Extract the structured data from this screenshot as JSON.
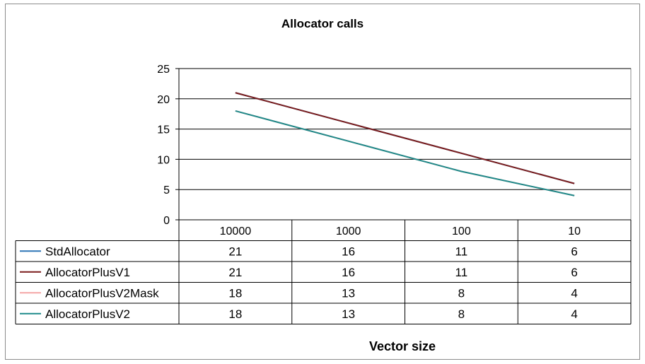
{
  "chart_data": {
    "type": "line",
    "title": "Allocator calls",
    "xlabel": "Vector size",
    "ylabel": "",
    "categories": [
      "10000",
      "1000",
      "100",
      "10"
    ],
    "ylim": [
      0,
      25
    ],
    "yticks": [
      0,
      5,
      10,
      15,
      20,
      25
    ],
    "grid": true,
    "legend": "data-table",
    "series": [
      {
        "name": "StdAllocator",
        "values": [
          21,
          16,
          11,
          6
        ],
        "color": "#2e75b6"
      },
      {
        "name": "AllocatorPlusV1",
        "values": [
          21,
          16,
          11,
          6
        ],
        "color": "#7b1c1c"
      },
      {
        "name": "AllocatorPlusV2Mask",
        "values": [
          18,
          13,
          8,
          4
        ],
        "color": "#f4a6a6"
      },
      {
        "name": "AllocatorPlusV2",
        "values": [
          18,
          13,
          8,
          4
        ],
        "color": "#1f8a8a"
      }
    ]
  }
}
